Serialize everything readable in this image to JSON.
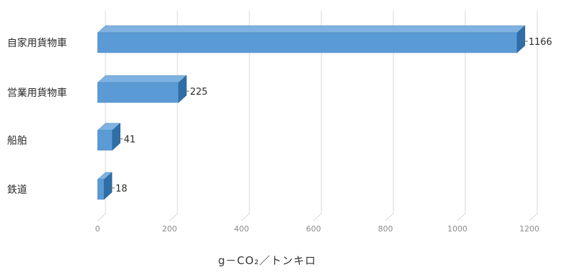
{
  "chart_data": {
    "type": "bar",
    "orientation": "horizontal",
    "style": "3d",
    "categories": [
      "自家用貨物車",
      "営業用貨物車",
      "船舶",
      "鉄道"
    ],
    "values": [
      1166,
      225,
      41,
      18
    ],
    "xlabel": "g－CO₂／トンキロ",
    "xlim": [
      0,
      1200
    ],
    "xticks": [
      0,
      200,
      400,
      600,
      800,
      1000,
      1200
    ],
    "grid": "vertical",
    "legend": "none",
    "data_labels": true,
    "bar_color": "#5b9bd5"
  }
}
